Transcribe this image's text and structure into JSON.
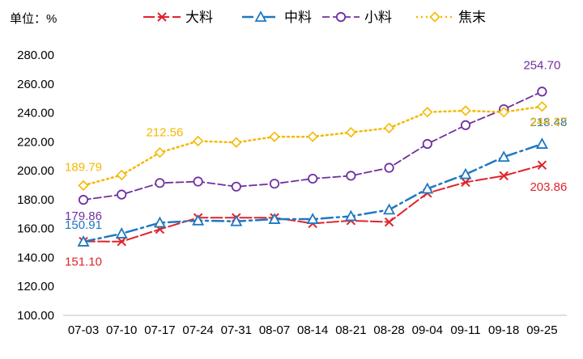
{
  "chart_data": {
    "type": "line",
    "unit_label": "单位：%",
    "title": "",
    "xlabel": "",
    "ylabel": "",
    "ylim": [
      100,
      280
    ],
    "yticks": [
      "100.00",
      "120.00",
      "140.00",
      "160.00",
      "180.00",
      "200.00",
      "220.00",
      "240.00",
      "260.00",
      "280.00"
    ],
    "categories": [
      "07-03",
      "07-10",
      "07-17",
      "07-24",
      "07-31",
      "08-07",
      "08-14",
      "08-21",
      "08-28",
      "09-04",
      "09-11",
      "09-18",
      "09-25"
    ],
    "grid": false,
    "legend_position": "top",
    "series": [
      {
        "name": "大料",
        "color": "#e0242b",
        "marker": "x-icon",
        "values": [
          151.1,
          151.0,
          159.5,
          167.5,
          167.5,
          167.5,
          163.5,
          165.5,
          164.5,
          184.5,
          192.0,
          196.5,
          203.86
        ],
        "labels": [
          {
            "index": 0,
            "text": "151.10"
          },
          {
            "index": 12,
            "text": "203.86"
          }
        ]
      },
      {
        "name": "中料",
        "color": "#1f78c1",
        "marker": "triangle-icon",
        "values": [
          150.91,
          156.5,
          164.0,
          165.5,
          165.0,
          166.5,
          166.5,
          168.5,
          173.0,
          187.5,
          197.5,
          209.5,
          218.48
        ],
        "labels": [
          {
            "index": 0,
            "text": "150.91"
          },
          {
            "index": 12,
            "text": "218.48"
          }
        ]
      },
      {
        "name": "小料",
        "color": "#7030a0",
        "marker": "circle-icon",
        "values": [
          179.86,
          183.5,
          191.5,
          192.5,
          189.0,
          191.0,
          194.5,
          196.5,
          202.0,
          218.5,
          231.5,
          242.5,
          254.7
        ],
        "labels": [
          {
            "index": 0,
            "text": "179.86"
          },
          {
            "index": 12,
            "text": "254.70"
          }
        ]
      },
      {
        "name": "焦末",
        "color": "#f5b800",
        "marker": "diamond-icon",
        "values": [
          189.79,
          197.0,
          212.56,
          220.5,
          219.5,
          223.5,
          223.5,
          226.5,
          229.5,
          240.5,
          241.5,
          240.5,
          244.37
        ],
        "labels": [
          {
            "index": 0,
            "text": "189.79"
          },
          {
            "index": 2,
            "text": "212.56"
          },
          {
            "index": 12,
            "text": "244.37"
          }
        ]
      }
    ]
  }
}
